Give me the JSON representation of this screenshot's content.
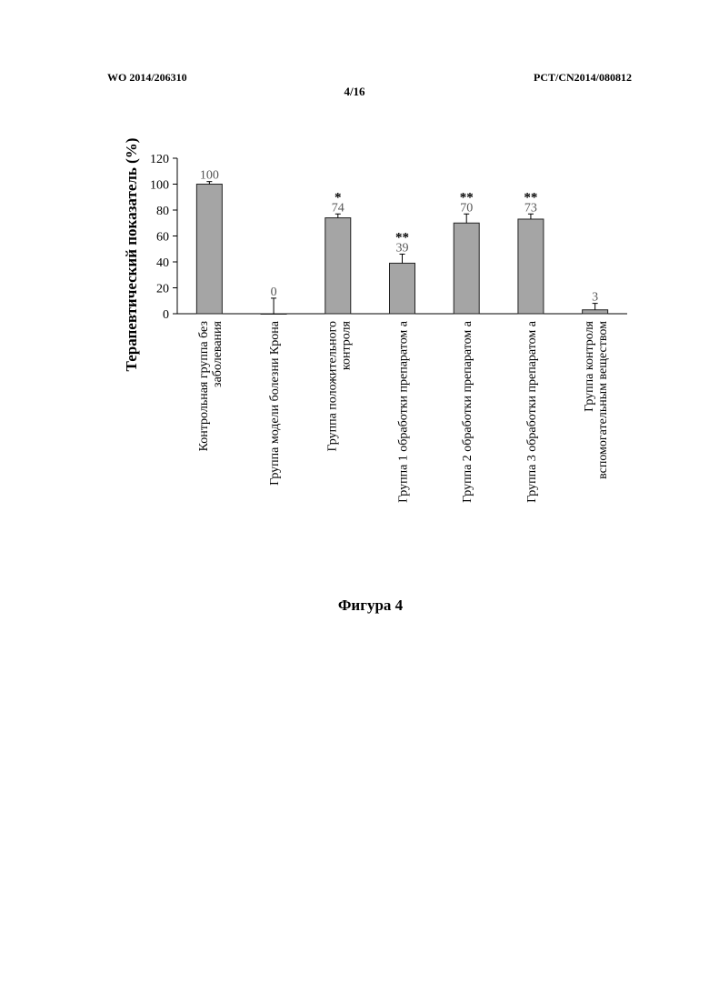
{
  "header": {
    "left": "WO 2014/206310",
    "right": "PCT/CN2014/080812",
    "page": "4/16"
  },
  "figure_caption": "Фигура 4",
  "colors": {
    "bar": "#a5a5a5",
    "bar_stroke": "#222222",
    "axis": "#000000"
  },
  "chart_data": {
    "type": "bar",
    "ylabel": "Терапевтический показатель (%)",
    "xlabel": "",
    "ylim": [
      0,
      120
    ],
    "yticks": [
      0,
      20,
      40,
      60,
      80,
      100,
      120
    ],
    "grid": false,
    "categories": [
      [
        "Контрольная группа без",
        "заболевания"
      ],
      [
        "Группа модели болезни Крона"
      ],
      [
        "Группа положительного",
        "контроля"
      ],
      [
        "Группа 1 обработки препаратом а"
      ],
      [
        "Группа 2 обработки препаратом а"
      ],
      [
        "Группа 3 обработки препаратом а"
      ],
      [
        "Группа контроля",
        "вспомогательным веществом"
      ]
    ],
    "values": [
      100,
      0,
      74,
      39,
      70,
      73,
      3
    ],
    "value_labels": [
      "100",
      "0",
      "74",
      "39",
      "70",
      "73",
      "3"
    ],
    "error": [
      2,
      12,
      3,
      7,
      7,
      4,
      5
    ],
    "significance": [
      "",
      "",
      "*",
      "**",
      "**",
      "**",
      ""
    ]
  }
}
